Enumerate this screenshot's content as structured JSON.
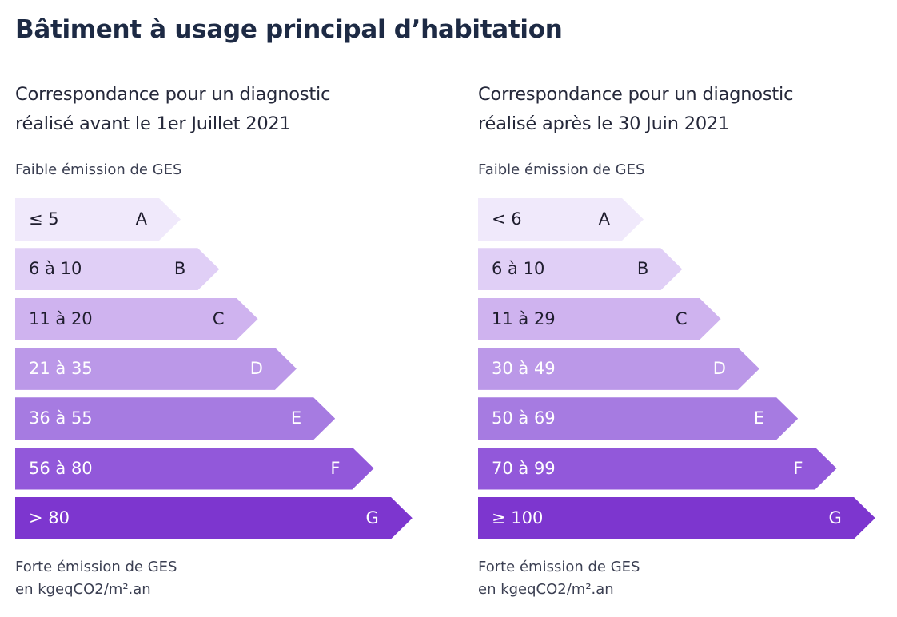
{
  "page_title": "Bâtiment à usage principal d’habitation",
  "panels": [
    {
      "heading_line1": "Correspondance pour un diagnostic",
      "heading_line2": "réalisé avant le 1er Juillet 2021",
      "top_caption": "Faible émission de GES",
      "bottom_caption_line1": "Forte émission de GES",
      "bottom_caption_line2": "en kgeqCO2/m².an",
      "classes": [
        {
          "range": "≤ 5",
          "letter": "A"
        },
        {
          "range": "6 à 10",
          "letter": "B"
        },
        {
          "range": "11 à 20",
          "letter": "C"
        },
        {
          "range": "21 à 35",
          "letter": "D"
        },
        {
          "range": "36 à 55",
          "letter": "E"
        },
        {
          "range": "56 à 80",
          "letter": "F"
        },
        {
          "range": "> 80",
          "letter": "G"
        }
      ]
    },
    {
      "heading_line1": "Correspondance pour un diagnostic",
      "heading_line2": "réalisé après le 30 Juin 2021",
      "top_caption": "Faible émission de GES",
      "bottom_caption_line1": "Forte émission de GES",
      "bottom_caption_line2": "en kgeqCO2/m².an",
      "classes": [
        {
          "range": "< 6",
          "letter": "A"
        },
        {
          "range": "6 à 10",
          "letter": "B"
        },
        {
          "range": "11 à 29",
          "letter": "C"
        },
        {
          "range": "30 à 49",
          "letter": "D"
        },
        {
          "range": "50 à 69",
          "letter": "E"
        },
        {
          "range": "70 à 99",
          "letter": "F"
        },
        {
          "range": "≥ 100",
          "letter": "G"
        }
      ]
    }
  ],
  "class_colors": {
    "A": {
      "fill": "#f0e9fb",
      "text": "#1f1d2e"
    },
    "B": {
      "fill": "#e0cff6",
      "text": "#1f1d2e"
    },
    "C": {
      "fill": "#cfb3ef",
      "text": "#1f1d2e"
    },
    "D": {
      "fill": "#bb98e8",
      "text": "#ffffff"
    },
    "E": {
      "fill": "#a67be1",
      "text": "#ffffff"
    },
    "F": {
      "fill": "#9258da",
      "text": "#ffffff"
    },
    "G": {
      "fill": "#7d36cf",
      "text": "#ffffff"
    }
  }
}
